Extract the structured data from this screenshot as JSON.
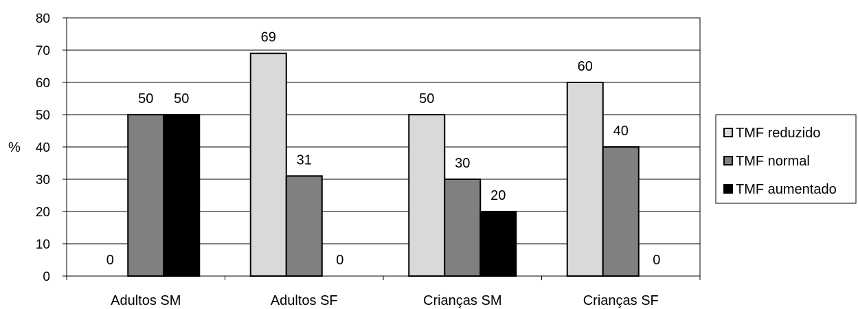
{
  "chart_data": {
    "type": "bar",
    "title": "",
    "xlabel": "",
    "ylabel": "%",
    "ylim": [
      0,
      80
    ],
    "yticks": [
      0,
      10,
      20,
      30,
      40,
      50,
      60,
      70,
      80
    ],
    "grid": true,
    "legend_position": "right",
    "categories": [
      "Adultos SM",
      "Adultos SF",
      "Crianças SM",
      "Crianças SF"
    ],
    "series": [
      {
        "name": "TMF reduzido",
        "color": "#d9d9d9",
        "values": [
          0,
          69,
          50,
          60
        ]
      },
      {
        "name": "TMF normal",
        "color": "#808080",
        "values": [
          50,
          31,
          30,
          40
        ]
      },
      {
        "name": "TMF aumentado",
        "color": "#000000",
        "values": [
          50,
          0,
          20,
          0
        ]
      }
    ]
  }
}
